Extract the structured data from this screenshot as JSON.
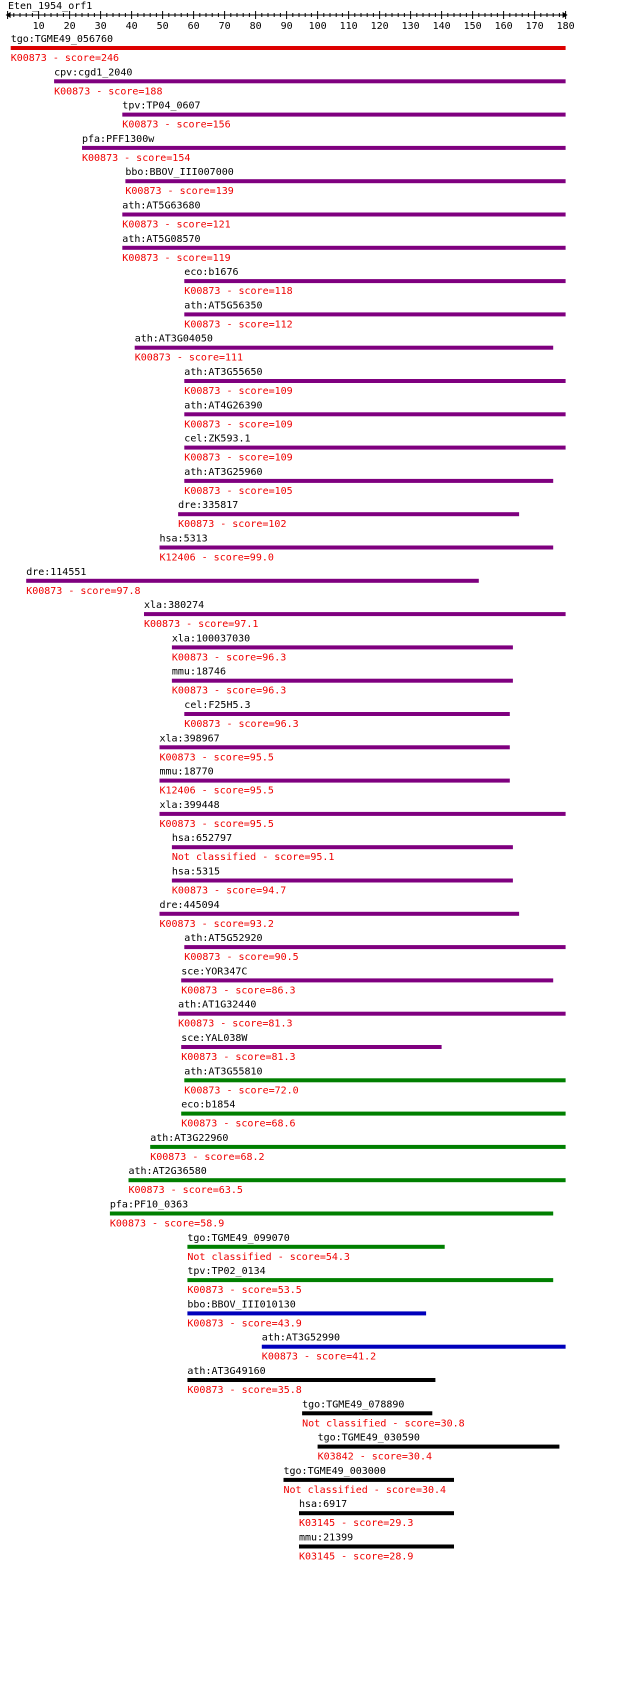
{
  "title": "Eten_1954_orf1",
  "axis": {
    "min": 0,
    "max": 180,
    "major_step": 10,
    "minor_step": 2,
    "tick_labels": [
      "10",
      "20",
      "30",
      "40",
      "50",
      "60",
      "70",
      "80",
      "90",
      "100",
      "110",
      "120",
      "130",
      "140",
      "150",
      "160",
      "170",
      "180"
    ]
  },
  "score_colors": {
    "red": "#dd0000",
    "purple": "#7f007f",
    "green": "#007f00",
    "blue": "#0000bb",
    "black": "#000000"
  },
  "hits": [
    {
      "gene": "tgo:TGME49_056760",
      "ko": "K00873",
      "score": "246",
      "start": 1,
      "end": 180,
      "color": "red"
    },
    {
      "gene": "cpv:cgd1_2040",
      "ko": "K00873",
      "score": "188",
      "start": 15,
      "end": 180,
      "color": "purple"
    },
    {
      "gene": "tpv:TP04_0607",
      "ko": "K00873",
      "score": "156",
      "start": 37,
      "end": 180,
      "color": "purple"
    },
    {
      "gene": "pfa:PFF1300w",
      "ko": "K00873",
      "score": "154",
      "start": 24,
      "end": 180,
      "color": "purple"
    },
    {
      "gene": "bbo:BBOV_III007000",
      "ko": "K00873",
      "score": "139",
      "start": 38,
      "end": 180,
      "color": "purple"
    },
    {
      "gene": "ath:AT5G63680",
      "ko": "K00873",
      "score": "121",
      "start": 37,
      "end": 180,
      "color": "purple"
    },
    {
      "gene": "ath:AT5G08570",
      "ko": "K00873",
      "score": "119",
      "start": 37,
      "end": 180,
      "color": "purple"
    },
    {
      "gene": "eco:b1676",
      "ko": "K00873",
      "score": "118",
      "start": 57,
      "end": 180,
      "color": "purple"
    },
    {
      "gene": "ath:AT5G56350",
      "ko": "K00873",
      "score": "112",
      "start": 57,
      "end": 180,
      "color": "purple"
    },
    {
      "gene": "ath:AT3G04050",
      "ko": "K00873",
      "score": "111",
      "start": 41,
      "end": 176,
      "color": "purple"
    },
    {
      "gene": "ath:AT3G55650",
      "ko": "K00873",
      "score": "109",
      "start": 57,
      "end": 180,
      "color": "purple"
    },
    {
      "gene": "ath:AT4G26390",
      "ko": "K00873",
      "score": "109",
      "start": 57,
      "end": 180,
      "color": "purple"
    },
    {
      "gene": "cel:ZK593.1",
      "ko": "K00873",
      "score": "109",
      "start": 57,
      "end": 180,
      "color": "purple"
    },
    {
      "gene": "ath:AT3G25960",
      "ko": "K00873",
      "score": "105",
      "start": 57,
      "end": 176,
      "color": "purple"
    },
    {
      "gene": "dre:335817",
      "ko": "K00873",
      "score": "102",
      "start": 55,
      "end": 165,
      "color": "purple"
    },
    {
      "gene": "hsa:5313",
      "ko": "K12406",
      "score": "99.0",
      "start": 49,
      "end": 176,
      "color": "purple"
    },
    {
      "gene": "dre:114551",
      "ko": "K00873",
      "score": "97.8",
      "start": 6,
      "end": 152,
      "color": "purple"
    },
    {
      "gene": "xla:380274",
      "ko": "K00873",
      "score": "97.1",
      "start": 44,
      "end": 180,
      "color": "purple"
    },
    {
      "gene": "xla:100037030",
      "ko": "K00873",
      "score": "96.3",
      "start": 53,
      "end": 163,
      "color": "purple"
    },
    {
      "gene": "mmu:18746",
      "ko": "K00873",
      "score": "96.3",
      "start": 53,
      "end": 163,
      "color": "purple"
    },
    {
      "gene": "cel:F25H5.3",
      "ko": "K00873",
      "score": "96.3",
      "start": 57,
      "end": 162,
      "color": "purple"
    },
    {
      "gene": "xla:398967",
      "ko": "K00873",
      "score": "95.5",
      "start": 49,
      "end": 162,
      "color": "purple"
    },
    {
      "gene": "mmu:18770",
      "ko": "K12406",
      "score": "95.5",
      "start": 49,
      "end": 162,
      "color": "purple"
    },
    {
      "gene": "xla:399448",
      "ko": "K00873",
      "score": "95.5",
      "start": 49,
      "end": 180,
      "color": "purple"
    },
    {
      "gene": "hsa:652797",
      "ko": "Not classified",
      "score": "95.1",
      "start": 53,
      "end": 163,
      "color": "purple"
    },
    {
      "gene": "hsa:5315",
      "ko": "K00873",
      "score": "94.7",
      "start": 53,
      "end": 163,
      "color": "purple"
    },
    {
      "gene": "dre:445094",
      "ko": "K00873",
      "score": "93.2",
      "start": 49,
      "end": 165,
      "color": "purple"
    },
    {
      "gene": "ath:AT5G52920",
      "ko": "K00873",
      "score": "90.5",
      "start": 57,
      "end": 180,
      "color": "purple"
    },
    {
      "gene": "sce:YOR347C",
      "ko": "K00873",
      "score": "86.3",
      "start": 56,
      "end": 176,
      "color": "purple"
    },
    {
      "gene": "ath:AT1G32440",
      "ko": "K00873",
      "score": "81.3",
      "start": 55,
      "end": 180,
      "color": "purple"
    },
    {
      "gene": "sce:YAL038W",
      "ko": "K00873",
      "score": "81.3",
      "start": 56,
      "end": 140,
      "color": "purple"
    },
    {
      "gene": "ath:AT3G55810",
      "ko": "K00873",
      "score": "72.0",
      "start": 57,
      "end": 180,
      "color": "green"
    },
    {
      "gene": "eco:b1854",
      "ko": "K00873",
      "score": "68.6",
      "start": 56,
      "end": 180,
      "color": "green"
    },
    {
      "gene": "ath:AT3G22960",
      "ko": "K00873",
      "score": "68.2",
      "start": 46,
      "end": 180,
      "color": "green"
    },
    {
      "gene": "ath:AT2G36580",
      "ko": "K00873",
      "score": "63.5",
      "start": 39,
      "end": 180,
      "color": "green"
    },
    {
      "gene": "pfa:PF10_0363",
      "ko": "K00873",
      "score": "58.9",
      "start": 33,
      "end": 176,
      "color": "green"
    },
    {
      "gene": "tgo:TGME49_099070",
      "ko": "Not classified",
      "score": "54.3",
      "start": 58,
      "end": 141,
      "color": "green"
    },
    {
      "gene": "tpv:TP02_0134",
      "ko": "K00873",
      "score": "53.5",
      "start": 58,
      "end": 176,
      "color": "green"
    },
    {
      "gene": "bbo:BBOV_III010130",
      "ko": "K00873",
      "score": "43.9",
      "start": 58,
      "end": 135,
      "color": "blue"
    },
    {
      "gene": "ath:AT3G52990",
      "ko": "K00873",
      "score": "41.2",
      "start": 82,
      "end": 180,
      "color": "blue"
    },
    {
      "gene": "ath:AT3G49160",
      "ko": "K00873",
      "score": "35.8",
      "start": 58,
      "end": 138,
      "color": "black"
    },
    {
      "gene": "tgo:TGME49_078890",
      "ko": "Not classified",
      "score": "30.8",
      "start": 95,
      "end": 137,
      "color": "black"
    },
    {
      "gene": "tgo:TGME49_030590",
      "ko": "K03842",
      "score": "30.4",
      "start": 100,
      "end": 178,
      "color": "black"
    },
    {
      "gene": "tgo:TGME49_003000",
      "ko": "Not classified",
      "score": "30.4",
      "start": 89,
      "end": 144,
      "color": "black"
    },
    {
      "gene": "hsa:6917",
      "ko": "K03145",
      "score": "29.3",
      "start": 94,
      "end": 144,
      "color": "black"
    },
    {
      "gene": "mmu:21399",
      "ko": "K03145",
      "score": "28.9",
      "start": 94,
      "end": 144,
      "color": "black"
    }
  ]
}
